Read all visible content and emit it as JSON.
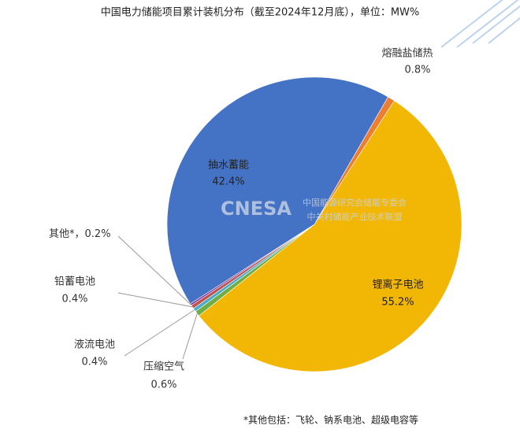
{
  "chart_data": {
    "type": "pie",
    "title": "中国电力储能项目累计装机分布（截至2024年12月底），单位：MW%",
    "categories": [
      "熔融盐储热",
      "锂离子电池",
      "压缩空气",
      "液流电池",
      "铅蓄电池",
      "其他*，",
      "抽水蓄能"
    ],
    "values": [
      0.8,
      55.2,
      0.6,
      0.4,
      0.4,
      0.2,
      42.4
    ],
    "value_labels": [
      "0.8%",
      "55.2%",
      "0.6%",
      "0.4%",
      "0.4%",
      "0.2%",
      "42.4%"
    ],
    "colors": [
      "#ed7d31",
      "#f2b705",
      "#70ad47",
      "#4bacc6",
      "#c0504d",
      "#7030a0",
      "#4472c4"
    ],
    "footnote": "*其他包括：飞轮、钠系电池、超级电容等",
    "watermark": {
      "logo": "CNESA",
      "line1": "中国能源研究会储能专委会",
      "line2": "中关村储能产业技术联盟"
    }
  }
}
